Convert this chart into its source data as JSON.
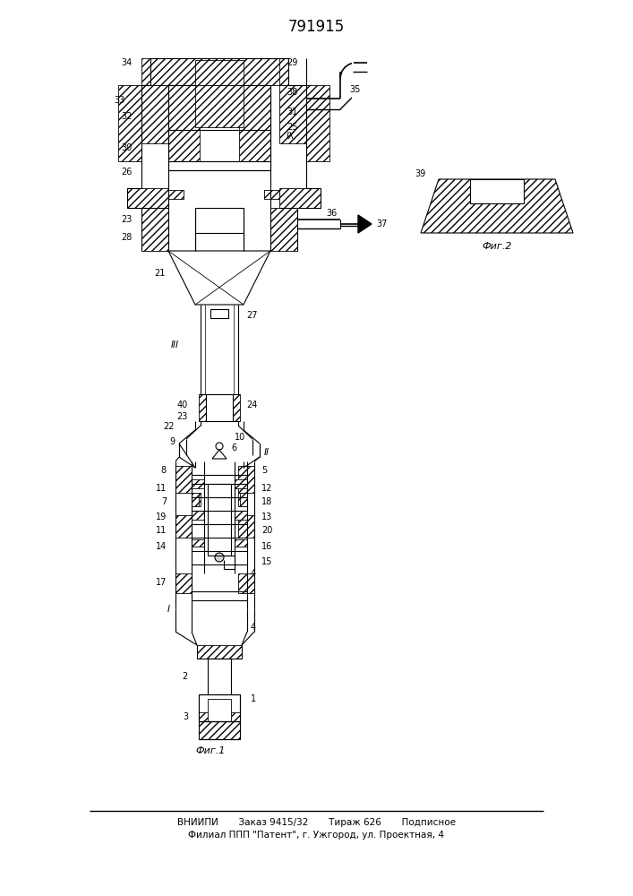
{
  "title": "791915",
  "fig1_label": "Фиг.1",
  "fig2_label": "Фиг.2",
  "footer_line1": "ВНИИПИ       Заказ 9415/32       Тираж 626       Подписное",
  "footer_line2": "Филиал ППП \"Патент\", г. Ужгород, ул. Проектная, 4",
  "bg_color": "#ffffff",
  "lc": "#000000"
}
